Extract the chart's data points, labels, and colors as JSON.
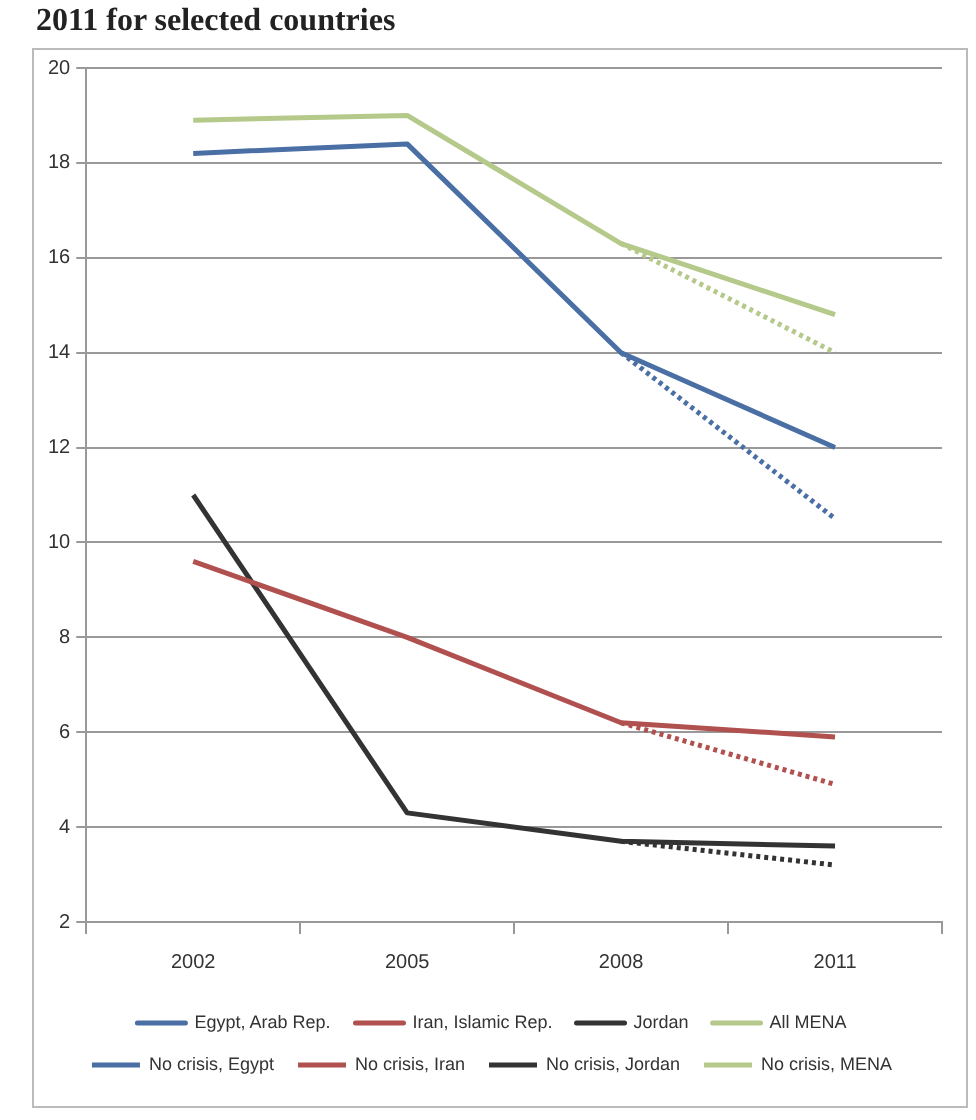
{
  "chart_data": {
    "type": "line",
    "title": "2011 for selected countries",
    "categories": [
      "2002",
      "2005",
      "2008",
      "2011"
    ],
    "ylim": [
      2,
      20
    ],
    "yticks": [
      2,
      4,
      6,
      8,
      10,
      12,
      14,
      16,
      18,
      20
    ],
    "grid": "y",
    "legend": "bottom",
    "marker": "none",
    "series": [
      {
        "name": "Egypt, Arab Rep.",
        "color": "#4a6fa5",
        "values": [
          18.2,
          18.4,
          14.0,
          12.0
        ]
      },
      {
        "name": "Iran, Islamic Rep.",
        "color": "#b0504f",
        "values": [
          9.6,
          8.0,
          6.2,
          5.9
        ]
      },
      {
        "name": "Jordan",
        "color": "#333333",
        "values": [
          11.0,
          4.3,
          3.7,
          3.6
        ]
      },
      {
        "name": "All MENA",
        "color": "#b5c98a",
        "values": [
          18.9,
          19.0,
          16.3,
          14.8
        ]
      },
      {
        "name": "No crisis, Egypt",
        "color": "#4a6fa5",
        "line_style": "dotted",
        "values": [
          null,
          null,
          14.0,
          10.5
        ]
      },
      {
        "name": "No crisis, Iran",
        "color": "#b0504f",
        "line_style": "dotted",
        "values": [
          null,
          null,
          6.2,
          4.9
        ]
      },
      {
        "name": "No crisis, Jordan",
        "color": "#333333",
        "line_style": "dotted",
        "values": [
          null,
          null,
          3.7,
          3.2
        ]
      },
      {
        "name": "No crisis, MENA",
        "color": "#b5c98a",
        "line_style": "dotted",
        "values": [
          null,
          null,
          16.3,
          14.0
        ]
      }
    ]
  }
}
